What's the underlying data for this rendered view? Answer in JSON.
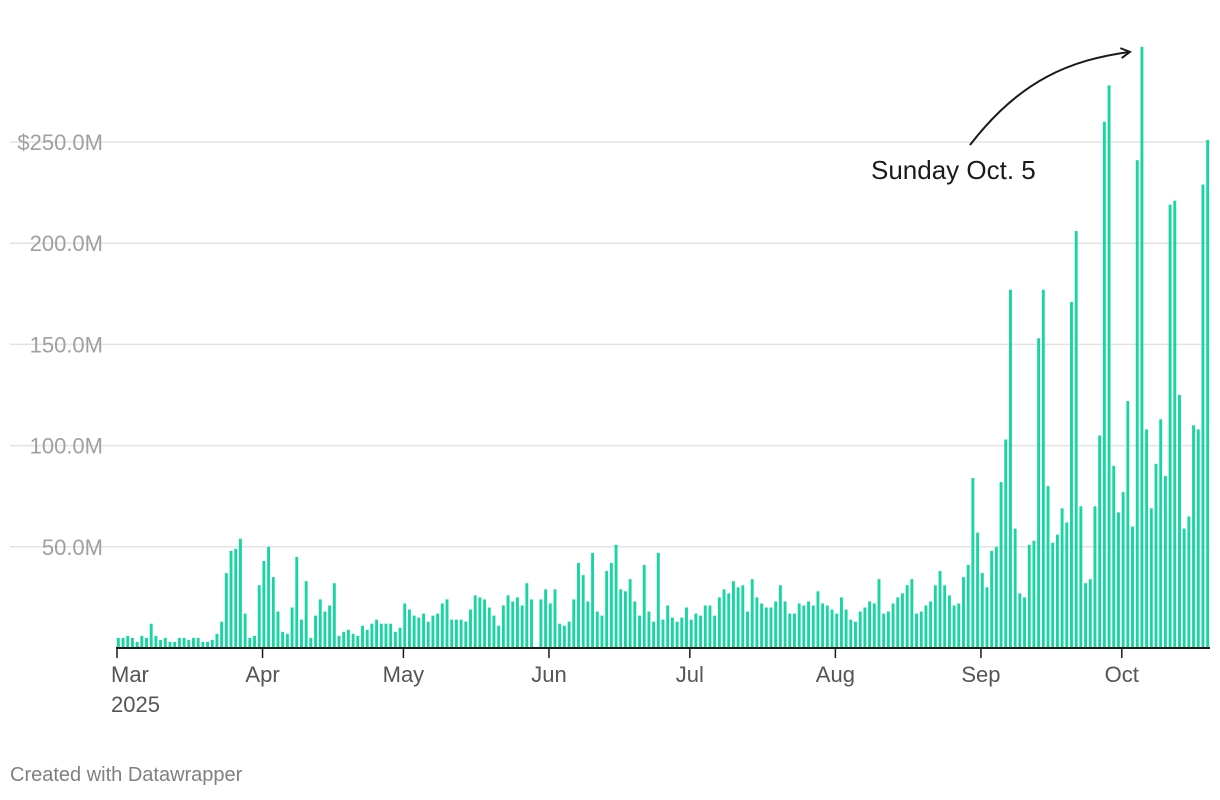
{
  "chart_data": {
    "type": "bar",
    "title": "",
    "xlabel": "",
    "ylabel": "",
    "x_start": "2025-03-01",
    "x_end": "2025-10-19",
    "ylim": [
      0,
      297
    ],
    "y_ticks": [
      {
        "value": 50,
        "label": "50.0M"
      },
      {
        "value": 100,
        "label": "100.0M"
      },
      {
        "value": 150,
        "label": "150.0M"
      },
      {
        "value": 200,
        "label": "200.0M"
      },
      {
        "value": 250,
        "label": "$250.0M"
      }
    ],
    "x_ticks": [
      {
        "date": "2025-03-01",
        "label": "Mar",
        "sublabel": "2025"
      },
      {
        "date": "2025-04-01",
        "label": "Apr"
      },
      {
        "date": "2025-05-01",
        "label": "May"
      },
      {
        "date": "2025-06-01",
        "label": "Jun"
      },
      {
        "date": "2025-07-01",
        "label": "Jul"
      },
      {
        "date": "2025-08-01",
        "label": "Aug"
      },
      {
        "date": "2025-09-01",
        "label": "Sep"
      },
      {
        "date": "2025-10-01",
        "label": "Oct"
      }
    ],
    "grid": true,
    "bar_color": "#18d6a2",
    "values": [
      5,
      5,
      6,
      5,
      3,
      6,
      5,
      12,
      6,
      4,
      5,
      3,
      3,
      5,
      5,
      4,
      5,
      5,
      3,
      3,
      4,
      7,
      13,
      37,
      48,
      49,
      54,
      17,
      5,
      6,
      31,
      43,
      50,
      35,
      18,
      8,
      7,
      20,
      45,
      14,
      33,
      5,
      16,
      24,
      18,
      21,
      32,
      6,
      8,
      9,
      7,
      6,
      11,
      9,
      12,
      14,
      12,
      12,
      12,
      8,
      10,
      22,
      19,
      16,
      15,
      17,
      13,
      16,
      17,
      22,
      24,
      14,
      14,
      14,
      13,
      19,
      26,
      25,
      24,
      20,
      16,
      11,
      21,
      26,
      23,
      25,
      21,
      32,
      24,
      0,
      24,
      29,
      22,
      29,
      12,
      11,
      13,
      24,
      42,
      36,
      23,
      47,
      18,
      16,
      38,
      42,
      51,
      29,
      28,
      34,
      23,
      16,
      41,
      18,
      13,
      47,
      14,
      21,
      15,
      13,
      15,
      20,
      14,
      17,
      16,
      21,
      21,
      16,
      25,
      29,
      27,
      33,
      30,
      31,
      18,
      34,
      25,
      22,
      20,
      20,
      23,
      31,
      23,
      17,
      17,
      22,
      21,
      23,
      21,
      28,
      22,
      21,
      19,
      17,
      25,
      19,
      14,
      13,
      18,
      20,
      23,
      22,
      34,
      17,
      18,
      22,
      25,
      27,
      31,
      34,
      17,
      18,
      21,
      23,
      31,
      38,
      31,
      26,
      21,
      22,
      35,
      41,
      84,
      57,
      37,
      30,
      48,
      50,
      82,
      103,
      177,
      59,
      27,
      25,
      51,
      53,
      153,
      177,
      80,
      52,
      56,
      69,
      62,
      171,
      206,
      70,
      32,
      34,
      70,
      105,
      260,
      278,
      90,
      67,
      77,
      122,
      60,
      241,
      297,
      108,
      69,
      91,
      113,
      85,
      219,
      221,
      125,
      59,
      65,
      110,
      108,
      229,
      251
    ]
  },
  "annotation": {
    "text": "Sunday Oct. 5",
    "date": "2025-10-05",
    "value": 297
  },
  "footer": {
    "credit": "Created with Datawrapper"
  }
}
